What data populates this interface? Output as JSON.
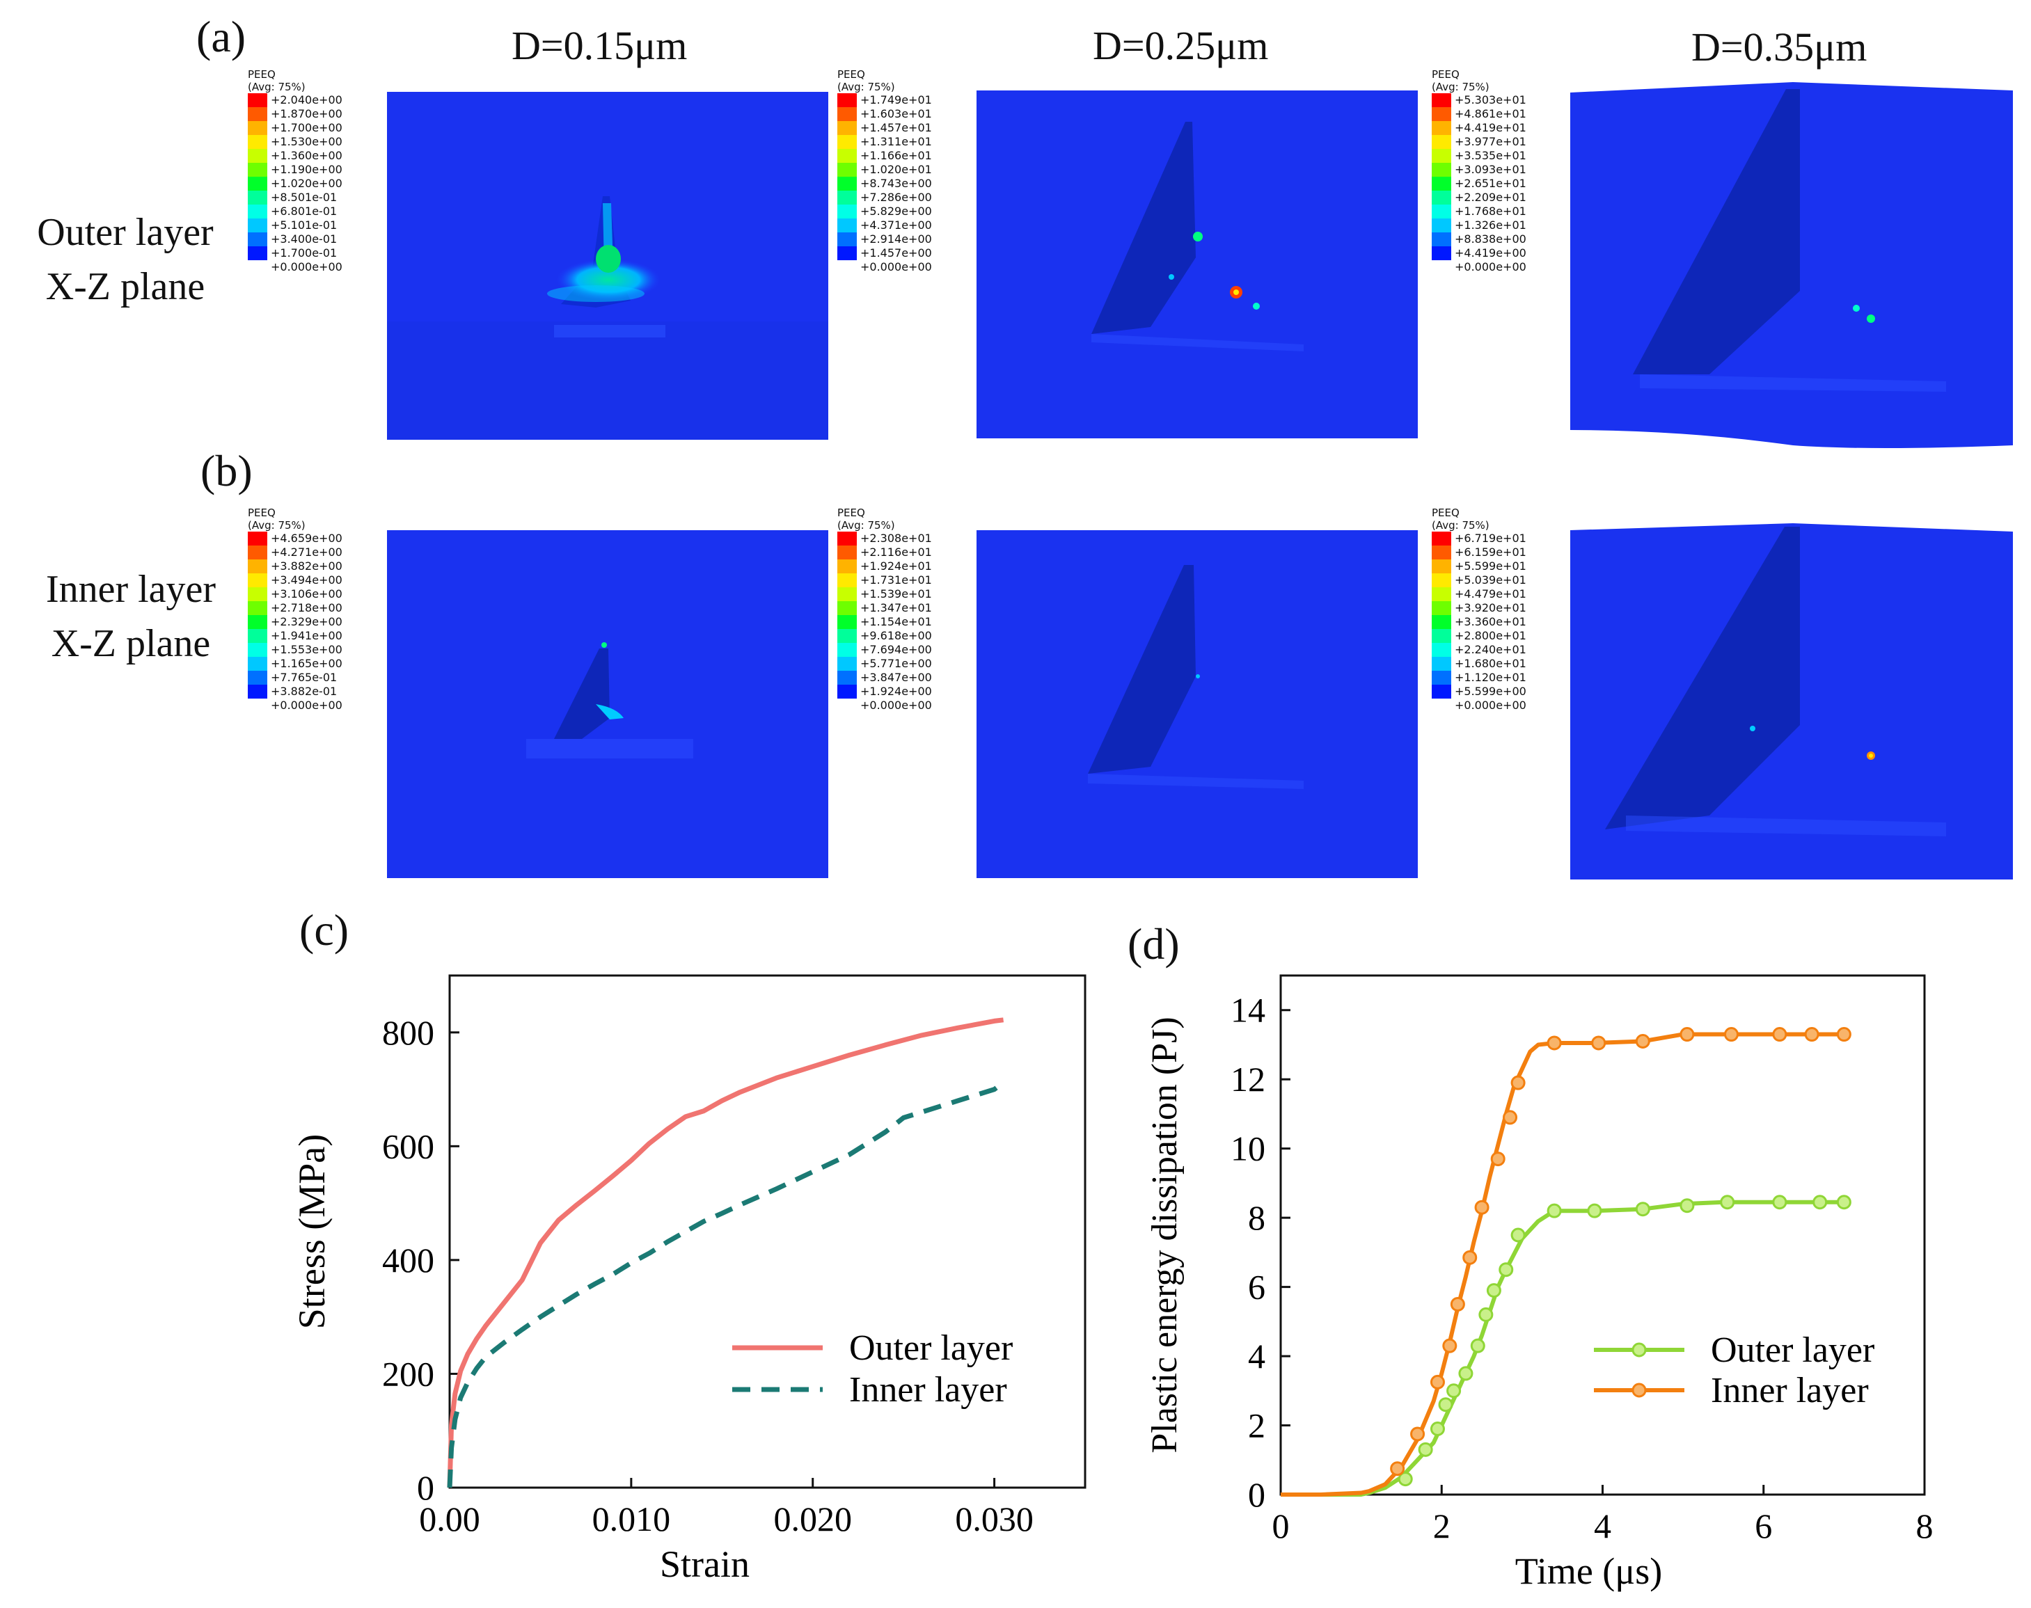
{
  "panels": {
    "a": "(a)",
    "b": "(b)",
    "c": "(c)",
    "d": "(d)"
  },
  "columns": [
    "D=0.15μm",
    "D=0.25μm",
    "D=0.35μm"
  ],
  "row_labels": {
    "outer": [
      "Outer layer",
      "X-Z plane"
    ],
    "inner": [
      "Inner layer",
      "X-Z plane"
    ]
  },
  "contour_legend": {
    "title": "PEEQ",
    "subtitle": "(Avg: 75%)",
    "colors": [
      "#ff0000",
      "#ff5a00",
      "#ffb300",
      "#ffea00",
      "#c8ff00",
      "#6eff00",
      "#00ff2a",
      "#00ff9a",
      "#00ffe6",
      "#00c8ff",
      "#0070ff",
      "#0018ff"
    ],
    "sets": [
      {
        "id": "outer-0.15",
        "values": [
          "+2.040e+00",
          "+1.870e+00",
          "+1.700e+00",
          "+1.530e+00",
          "+1.360e+00",
          "+1.190e+00",
          "+1.020e+00",
          "+8.501e-01",
          "+6.801e-01",
          "+5.101e-01",
          "+3.400e-01",
          "+1.700e-01",
          "+0.000e+00"
        ]
      },
      {
        "id": "outer-0.25",
        "values": [
          "+1.749e+01",
          "+1.603e+01",
          "+1.457e+01",
          "+1.311e+01",
          "+1.166e+01",
          "+1.020e+01",
          "+8.743e+00",
          "+7.286e+00",
          "+5.829e+00",
          "+4.371e+00",
          "+2.914e+00",
          "+1.457e+00",
          "+0.000e+00"
        ]
      },
      {
        "id": "outer-0.35",
        "values": [
          "+5.303e+01",
          "+4.861e+01",
          "+4.419e+01",
          "+3.977e+01",
          "+3.535e+01",
          "+3.093e+01",
          "+2.651e+01",
          "+2.209e+01",
          "+1.768e+01",
          "+1.326e+01",
          "+8.838e+00",
          "+4.419e+00",
          "+0.000e+00"
        ]
      },
      {
        "id": "inner-0.15",
        "values": [
          "+4.659e+00",
          "+4.271e+00",
          "+3.882e+00",
          "+3.494e+00",
          "+3.106e+00",
          "+2.718e+00",
          "+2.329e+00",
          "+1.941e+00",
          "+1.553e+00",
          "+1.165e+00",
          "+7.765e-01",
          "+3.882e-01",
          "+0.000e+00"
        ]
      },
      {
        "id": "inner-0.25",
        "values": [
          "+2.308e+01",
          "+2.116e+01",
          "+1.924e+01",
          "+1.731e+01",
          "+1.539e+01",
          "+1.347e+01",
          "+1.154e+01",
          "+9.618e+00",
          "+7.694e+00",
          "+5.771e+00",
          "+3.847e+00",
          "+1.924e+00",
          "+0.000e+00"
        ]
      },
      {
        "id": "inner-0.35",
        "values": [
          "+6.719e+01",
          "+6.159e+01",
          "+5.599e+01",
          "+5.039e+01",
          "+4.479e+01",
          "+3.920e+01",
          "+3.360e+01",
          "+2.800e+01",
          "+2.240e+01",
          "+1.680e+01",
          "+1.120e+01",
          "+5.599e+00",
          "+0.000e+00"
        ]
      }
    ]
  },
  "chart_data": [
    {
      "type": "line",
      "xlabel": "Strain",
      "ylabel": "Stress (MPa)",
      "xlim": [
        0,
        0.035
      ],
      "ylim": [
        0,
        900
      ],
      "xticks": [
        0.0,
        0.01,
        0.02,
        0.03
      ],
      "xtick_labels": [
        "0.00",
        "0.010",
        "0.020",
        "0.030"
      ],
      "yticks": [
        0,
        200,
        400,
        600,
        800
      ],
      "ytick_labels": [
        "0",
        "200",
        "400",
        "600",
        "800"
      ],
      "legend_position": "bottom-right",
      "series": [
        {
          "name": "Outer layer",
          "color": "#f07470",
          "style": "solid",
          "x": [
            0,
            0.0001,
            0.0003,
            0.0006,
            0.001,
            0.0015,
            0.002,
            0.0025,
            0.003,
            0.004,
            0.005,
            0.006,
            0.007,
            0.008,
            0.009,
            0.01,
            0.011,
            0.012,
            0.013,
            0.014,
            0.015,
            0.016,
            0.018,
            0.02,
            0.022,
            0.024,
            0.026,
            0.028,
            0.03,
            0.0305
          ],
          "y": [
            0,
            110,
            165,
            205,
            235,
            262,
            285,
            305,
            325,
            365,
            430,
            470,
            497,
            522,
            548,
            575,
            605,
            630,
            652,
            662,
            680,
            695,
            720,
            740,
            760,
            778,
            795,
            808,
            820,
            822
          ]
        },
        {
          "name": "Inner layer",
          "color": "#1b7a74",
          "style": "dashed",
          "x": [
            0,
            0.0001,
            0.0003,
            0.0006,
            0.001,
            0.0015,
            0.002,
            0.003,
            0.004,
            0.005,
            0.006,
            0.007,
            0.008,
            0.009,
            0.01,
            0.011,
            0.012,
            0.013,
            0.014,
            0.015,
            0.016,
            0.018,
            0.02,
            0.022,
            0.024,
            0.025,
            0.026,
            0.028,
            0.03,
            0.0305
          ],
          "y": [
            0,
            70,
            120,
            158,
            185,
            210,
            230,
            255,
            278,
            300,
            320,
            340,
            358,
            375,
            395,
            412,
            432,
            450,
            468,
            482,
            497,
            525,
            555,
            585,
            625,
            650,
            660,
            680,
            700,
            712
          ]
        }
      ]
    },
    {
      "type": "line",
      "xlabel": "Time (μs)",
      "ylabel": "Plastic energy dissipation (PJ)",
      "xlim": [
        0,
        8
      ],
      "ylim": [
        0,
        15
      ],
      "xticks": [
        0,
        2,
        4,
        6,
        8
      ],
      "xtick_labels": [
        "0",
        "2",
        "4",
        "6",
        "8"
      ],
      "yticks": [
        0,
        2,
        4,
        6,
        8,
        10,
        12,
        14
      ],
      "ytick_labels": [
        "0",
        "2",
        "4",
        "6",
        "8",
        "10",
        "12",
        "14"
      ],
      "legend_position": "bottom-right",
      "series": [
        {
          "name": "Outer layer",
          "color": "#8fd636",
          "marker_fill": "#c9f08a",
          "style": "solid",
          "x": [
            0,
            0.5,
            1.0,
            1.1,
            1.3,
            1.5,
            1.7,
            1.9,
            2.0,
            2.1,
            2.2,
            2.3,
            2.4,
            2.5,
            2.6,
            2.7,
            2.8,
            3.0,
            3.2,
            3.4,
            3.9,
            4.5,
            5.0,
            5.5,
            6.0,
            6.5,
            7.0
          ],
          "y": [
            0,
            0,
            0,
            0.05,
            0.2,
            0.5,
            1.0,
            1.5,
            2.0,
            2.5,
            3.0,
            3.5,
            4.0,
            4.6,
            5.3,
            6.0,
            6.5,
            7.4,
            7.9,
            8.2,
            8.2,
            8.25,
            8.4,
            8.45,
            8.45,
            8.45,
            8.45
          ],
          "marker_x": [
            1.55,
            1.8,
            1.95,
            2.05,
            2.15,
            2.3,
            2.45,
            2.55,
            2.65,
            2.8,
            2.95,
            3.4,
            3.9,
            4.5,
            5.05,
            5.55,
            6.2,
            6.7,
            7.0
          ],
          "marker_y": [
            0.45,
            1.3,
            1.9,
            2.6,
            3.0,
            3.5,
            4.3,
            5.2,
            5.9,
            6.5,
            7.5,
            8.2,
            8.2,
            8.25,
            8.35,
            8.45,
            8.45,
            8.45,
            8.45
          ]
        },
        {
          "name": "Inner layer",
          "color": "#f37f0f",
          "marker_fill": "#f8b46a",
          "style": "solid",
          "x": [
            0,
            0.5,
            1.0,
            1.1,
            1.3,
            1.5,
            1.7,
            1.9,
            2.0,
            2.1,
            2.2,
            2.3,
            2.4,
            2.5,
            2.6,
            2.7,
            2.8,
            2.9,
            3.0,
            3.1,
            3.2,
            3.4,
            3.9,
            4.5,
            5.0,
            5.5,
            6.0,
            6.5,
            7.0
          ],
          "y": [
            0,
            0,
            0.05,
            0.1,
            0.3,
            0.8,
            1.6,
            2.7,
            3.5,
            4.4,
            5.4,
            6.3,
            7.3,
            8.2,
            9.2,
            10.1,
            11.0,
            11.8,
            12.3,
            12.8,
            13.0,
            13.05,
            13.05,
            13.1,
            13.3,
            13.3,
            13.3,
            13.3,
            13.3
          ],
          "marker_x": [
            1.45,
            1.7,
            1.95,
            2.1,
            2.2,
            2.35,
            2.5,
            2.7,
            2.85,
            2.95,
            3.4,
            3.95,
            4.5,
            5.05,
            5.6,
            6.2,
            6.6,
            7.0
          ],
          "marker_y": [
            0.75,
            1.75,
            3.25,
            4.3,
            5.5,
            6.85,
            8.3,
            9.7,
            10.9,
            11.9,
            13.05,
            13.05,
            13.1,
            13.3,
            13.3,
            13.3,
            13.3,
            13.3
          ]
        }
      ]
    }
  ]
}
